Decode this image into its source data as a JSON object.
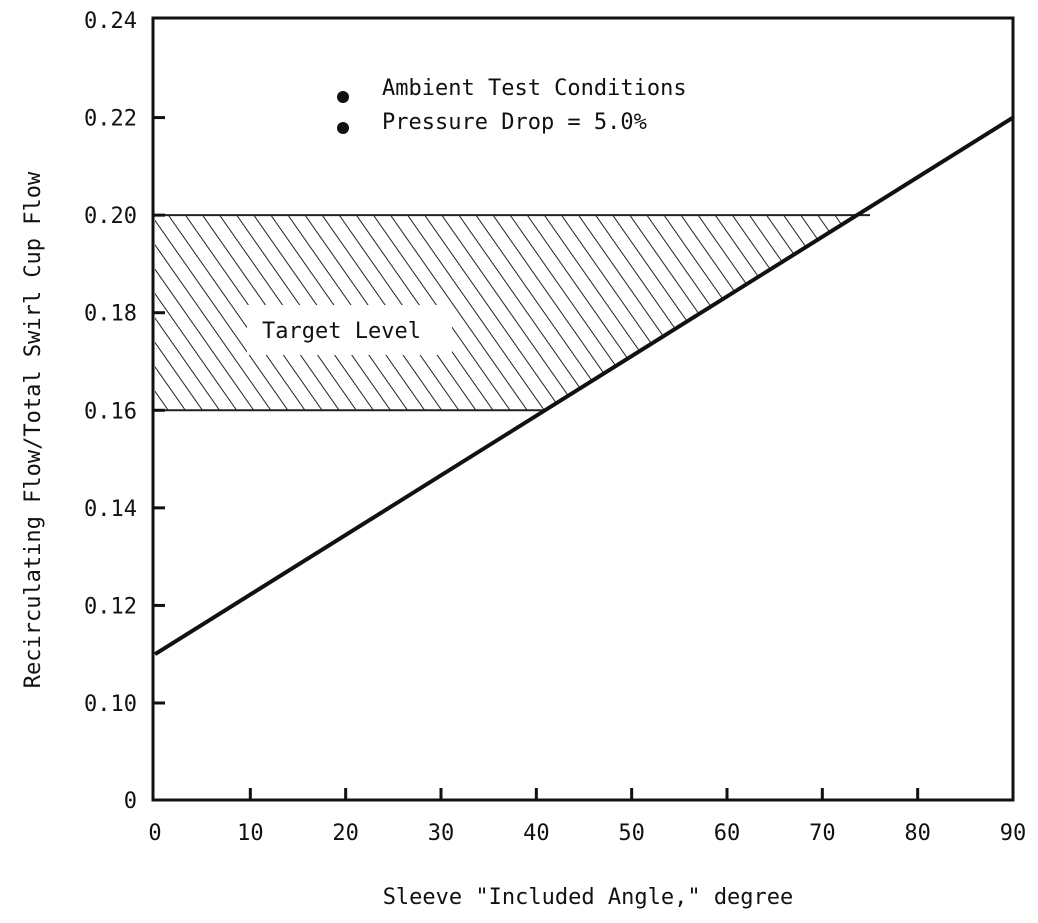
{
  "chart_data": {
    "type": "line",
    "title": "",
    "xlabel": "Sleeve \"Included Angle,\" degree",
    "ylabel": "Recirculating Flow/Total Swirl Cup Flow",
    "xlim": [
      0,
      90
    ],
    "ylim": [
      0,
      0.24
    ],
    "grid": false,
    "x_ticks": [
      "0",
      "10",
      "20",
      "30",
      "40",
      "50",
      "60",
      "70",
      "80",
      "90"
    ],
    "y_ticks": [
      "0",
      "0.10",
      "0.12",
      "0.14",
      "0.16",
      "0.18",
      "0.20",
      "0.22",
      "0.24"
    ],
    "series": [
      {
        "x": [
          0,
          90
        ],
        "y": [
          0.11,
          0.22
        ]
      }
    ],
    "legend": {
      "placement": "top-center",
      "entries": [
        "Ambient Test Conditions",
        "Pressure Drop = 5.0%"
      ]
    },
    "target_band": {
      "label": "Target Level",
      "y_low": 0.16,
      "y_high": 0.2,
      "x_start": 0,
      "x_end_high": 75,
      "x_end_low": 41
    }
  }
}
